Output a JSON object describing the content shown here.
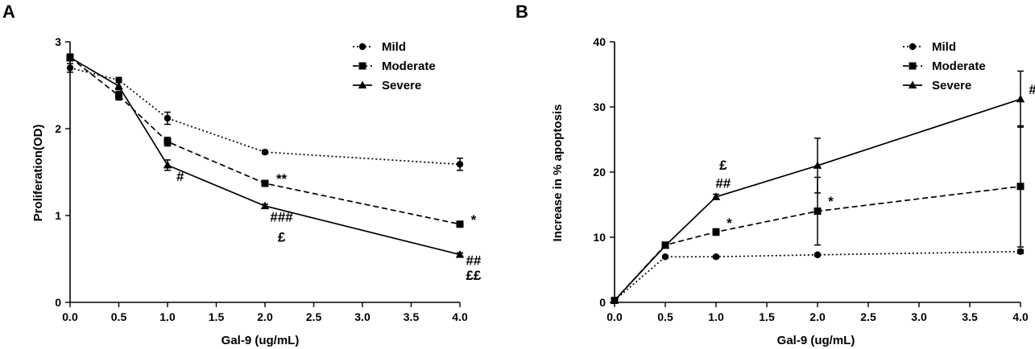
{
  "chart_data": [
    {
      "panel": "A",
      "type": "line",
      "xlabel": "Gal-9 (ug/mL)",
      "ylabel": "Proliferation(OD)",
      "xlim": [
        0.0,
        4.0
      ],
      "ylim": [
        0,
        3
      ],
      "x_tick_labels": [
        "0.0",
        "0.5",
        "1.0",
        "1.5",
        "2.0",
        "2.5",
        "3.0",
        "3.5",
        "4.0"
      ],
      "x_tick_values": [
        0,
        0.5,
        1,
        1.5,
        2,
        2.5,
        3,
        3.5,
        4
      ],
      "y_tick_labels": [
        "0",
        "1",
        "2",
        "3"
      ],
      "y_tick_values": [
        0,
        1,
        2,
        3
      ],
      "legend_position": "top-right",
      "x": [
        0,
        0.5,
        1,
        2,
        4
      ],
      "series": [
        {
          "name": "Mild",
          "style": "dotted",
          "marker": "circle",
          "values": [
            2.7,
            2.56,
            2.12,
            1.73,
            1.59
          ],
          "errors": [
            0.05,
            0.03,
            0.07,
            0.02,
            0.07
          ]
        },
        {
          "name": "Moderate",
          "style": "dashed",
          "marker": "square",
          "values": [
            2.82,
            2.38,
            1.85,
            1.37,
            0.9
          ],
          "errors": [
            0.04,
            0.05,
            0.05,
            0.02,
            0.03
          ]
        },
        {
          "name": "Severe",
          "style": "solid",
          "marker": "triangle",
          "values": [
            2.82,
            2.49,
            1.58,
            1.11,
            0.55
          ],
          "errors": [
            0.03,
            0.04,
            0.06,
            0.02,
            0.02
          ]
        }
      ],
      "annotations": [
        {
          "text": "#",
          "x": 1.13,
          "y": 1.4
        },
        {
          "text": "**",
          "x": 2.17,
          "y": 1.37
        },
        {
          "text": "###",
          "x": 2.17,
          "y": 0.93
        },
        {
          "text": "£",
          "x": 2.17,
          "y": 0.7
        },
        {
          "text": "*",
          "x": 4.14,
          "y": 0.9
        },
        {
          "text": "##",
          "x": 4.14,
          "y": 0.43
        },
        {
          "text": "££",
          "x": 4.14,
          "y": 0.26
        }
      ]
    },
    {
      "panel": "B",
      "type": "line",
      "xlabel": "Gal-9 (ug/mL)",
      "ylabel": "Increase in % apoptosis",
      "xlim": [
        0.0,
        4.0
      ],
      "ylim": [
        0,
        40
      ],
      "x_tick_labels": [
        "0.0",
        "0.5",
        "1.0",
        "1.5",
        "2.0",
        "2.5",
        "3.0",
        "3.5",
        "4.0"
      ],
      "x_tick_values": [
        0,
        0.5,
        1,
        1.5,
        2,
        2.5,
        3,
        3.5,
        4
      ],
      "y_tick_labels": [
        "0",
        "10",
        "20",
        "30",
        "40"
      ],
      "y_tick_values": [
        0,
        10,
        20,
        30,
        40
      ],
      "legend_position": "top-right",
      "x": [
        0,
        0.5,
        1,
        2,
        4
      ],
      "series": [
        {
          "name": "Mild",
          "style": "dotted",
          "marker": "circle",
          "values": [
            0.3,
            7.0,
            7.0,
            7.3,
            7.8
          ],
          "errors": [
            0,
            0.2,
            0.2,
            0.2,
            0.3
          ]
        },
        {
          "name": "Moderate",
          "style": "dashed",
          "marker": "square",
          "values": [
            0.3,
            8.8,
            10.8,
            14.0,
            17.8
          ],
          "errors": [
            0,
            0.3,
            0.5,
            5.2,
            9.3
          ]
        },
        {
          "name": "Severe",
          "style": "solid",
          "marker": "triangle",
          "values": [
            0.3,
            8.7,
            16.2,
            21.0,
            31.2
          ],
          "errors": [
            0,
            0.3,
            0.4,
            4.2,
            4.3
          ]
        }
      ],
      "annotations": [
        {
          "text": "£",
          "x": 1.07,
          "y": 20.4
        },
        {
          "text": "##",
          "x": 1.07,
          "y": 17.6
        },
        {
          "text": "*",
          "x": 1.13,
          "y": 11.5
        },
        {
          "text": "*",
          "x": 2.13,
          "y": 14.8
        },
        {
          "text": "#",
          "x": 4.12,
          "y": 32.0
        }
      ]
    }
  ]
}
